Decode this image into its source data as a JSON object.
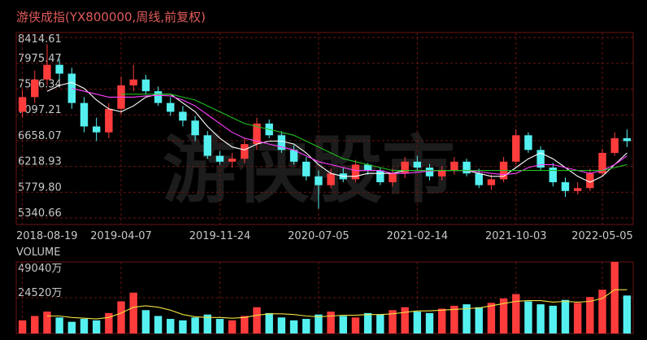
{
  "title": "游侠成指(YX800000,周线,前复权)",
  "watermark": "游侠股市",
  "chart_data": [
    {
      "type": "candlestick",
      "categories": [
        "2018-08-19",
        null,
        null,
        null,
        null,
        null,
        null,
        null,
        "2019-04-07",
        null,
        null,
        null,
        null,
        null,
        null,
        null,
        "2019-11-24",
        null,
        null,
        null,
        null,
        null,
        null,
        null,
        "2020-07-05",
        null,
        null,
        null,
        null,
        null,
        null,
        null,
        "2021-02-14",
        null,
        null,
        null,
        null,
        null,
        null,
        null,
        "2021-10-03",
        null,
        null,
        null,
        null,
        null,
        null,
        "2022-05-05",
        null,
        null
      ],
      "open": [
        7150,
        7400,
        7700,
        7950,
        7800,
        7300,
        6900,
        6800,
        7200,
        7600,
        7700,
        7500,
        7300,
        7150,
        7000,
        6750,
        6400,
        6300,
        6350,
        6600,
        6950,
        6750,
        6500,
        6300,
        6050,
        5900,
        6100,
        6000,
        6250,
        6150,
        5950,
        6100,
        6300,
        6200,
        6050,
        6150,
        6300,
        6100,
        5900,
        6000,
        6300,
        6750,
        6500,
        6200,
        5950,
        5800,
        5850,
        6100,
        6450,
        6700
      ],
      "high": [
        7520,
        7850,
        8300,
        8050,
        7900,
        7400,
        7050,
        7300,
        7750,
        7950,
        7780,
        7580,
        7400,
        7250,
        7080,
        6820,
        6480,
        6450,
        6700,
        7050,
        7020,
        6820,
        6580,
        6380,
        6150,
        6180,
        6200,
        6330,
        6280,
        6200,
        6180,
        6380,
        6400,
        6260,
        6220,
        6380,
        6350,
        6180,
        6080,
        6380,
        6850,
        6800,
        6560,
        6280,
        6030,
        5950,
        6180,
        6520,
        6800,
        6850
      ],
      "low": [
        7050,
        7300,
        7600,
        7700,
        7200,
        6800,
        6650,
        6700,
        7100,
        7500,
        7450,
        7250,
        7080,
        6900,
        6650,
        6350,
        6250,
        6200,
        6280,
        6500,
        6700,
        6450,
        6250,
        5980,
        5500,
        5850,
        5950,
        5950,
        6080,
        5900,
        5880,
        6020,
        6150,
        5980,
        5980,
        6080,
        6050,
        5850,
        5820,
        5950,
        6250,
        6450,
        6150,
        5880,
        5700,
        5740,
        5800,
        6050,
        6400,
        6550
      ],
      "close": [
        7400,
        7700,
        7950,
        7800,
        7300,
        6900,
        6800,
        7200,
        7600,
        7700,
        7500,
        7300,
        7150,
        7000,
        6750,
        6400,
        6300,
        6350,
        6600,
        6950,
        6750,
        6500,
        6300,
        6050,
        5900,
        6100,
        6000,
        6250,
        6150,
        5950,
        6100,
        6300,
        6200,
        6050,
        6150,
        6300,
        6100,
        5900,
        6000,
        6300,
        6750,
        6500,
        6200,
        5950,
        5800,
        5850,
        6100,
        6450,
        6700,
        6650
      ],
      "up_color": "#ff3c3c",
      "down_color": "#54f0f0",
      "series": [
        {
          "color": "#ffffff",
          "values": [
            null,
            null,
            7500,
            7600,
            7650,
            7550,
            7350,
            7200,
            7150,
            7250,
            7400,
            7450,
            7450,
            7300,
            7150,
            6900,
            6700,
            6550,
            6500,
            6600,
            6650,
            6650,
            6600,
            6450,
            6250,
            6100,
            6050,
            6050,
            6100,
            6100,
            6100,
            6150,
            6150,
            6150,
            6150,
            6150,
            6150,
            6100,
            6050,
            6050,
            6200,
            6350,
            6450,
            6350,
            6200,
            6050,
            5950,
            6050,
            6250,
            6450
          ]
        },
        {
          "color": "#ff40ff",
          "values": [
            null,
            null,
            null,
            null,
            7550,
            7500,
            7450,
            7400,
            7400,
            7400,
            7420,
            7430,
            7420,
            7350,
            7250,
            7100,
            6950,
            6800,
            6700,
            6650,
            6600,
            6550,
            6500,
            6400,
            6300,
            6250,
            6200,
            6150,
            6150,
            6150,
            6100,
            6100,
            6120,
            6140,
            6150,
            6150,
            6150,
            6130,
            6100,
            6080,
            6100,
            6200,
            6250,
            6250,
            6200,
            6150,
            6100,
            6150,
            6250,
            6400
          ]
        },
        {
          "color": "#20c020",
          "values": [
            null,
            null,
            null,
            null,
            null,
            null,
            null,
            null,
            7450,
            7450,
            7450,
            7450,
            7450,
            7400,
            7350,
            7250,
            7150,
            7050,
            6950,
            6900,
            6850,
            6800,
            6750,
            6650,
            6550,
            6450,
            6350,
            6300,
            6250,
            6200,
            6150,
            6150,
            6150,
            6150,
            6150,
            6150,
            6150,
            6150,
            6150,
            6150,
            6150,
            6150,
            6150,
            6150,
            6150,
            6150,
            6150,
            6150,
            6200,
            6250
          ]
        }
      ],
      "ylim": [
        5230,
        8500
      ],
      "yticks": [
        {
          "value": 8414.61,
          "label": "8414.61"
        },
        {
          "value": 7975.47,
          "label": "7975.47"
        },
        {
          "value": 7536.34,
          "label": "7536.34"
        },
        {
          "value": 7097.21,
          "label": "7097.21"
        },
        {
          "value": 6658.07,
          "label": "6658.07"
        },
        {
          "value": 6218.93,
          "label": "6218.93"
        },
        {
          "value": 5779.8,
          "label": "5779.80"
        },
        {
          "value": 5340.66,
          "label": "5340.66"
        }
      ],
      "grid": true
    },
    {
      "type": "bar",
      "title": "VOLUME",
      "values": [
        9000,
        12000,
        15000,
        11000,
        8000,
        10000,
        9000,
        14000,
        22000,
        28000,
        16000,
        12000,
        10000,
        9000,
        11000,
        13000,
        10000,
        9000,
        12000,
        18000,
        14000,
        11000,
        9000,
        10000,
        13000,
        15000,
        12000,
        11000,
        14000,
        13000,
        16000,
        18000,
        15000,
        14000,
        17000,
        19000,
        20000,
        18000,
        21000,
        24000,
        27000,
        22000,
        20000,
        19000,
        23000,
        21000,
        25000,
        30000,
        49040,
        26000
      ],
      "series": [
        {
          "color": "#f0e040",
          "values": [
            null,
            null,
            12000,
            12000,
            11000,
            10500,
            10000,
            11000,
            14000,
            18000,
            19000,
            18000,
            16000,
            13000,
            11500,
            11000,
            11000,
            10500,
            11000,
            12500,
            13500,
            13500,
            13000,
            12000,
            11500,
            12000,
            12500,
            12500,
            13000,
            13000,
            13500,
            14500,
            15500,
            15500,
            16000,
            16500,
            17000,
            17500,
            19000,
            20500,
            22000,
            22500,
            22500,
            21500,
            22000,
            21500,
            22000,
            24000,
            30000,
            30000
          ]
        }
      ],
      "ylim": [
        0,
        49040
      ],
      "yticks": [
        {
          "value": 49040,
          "label": "49040万"
        },
        {
          "value": 24520,
          "label": "24520万"
        }
      ],
      "grid": true
    }
  ]
}
